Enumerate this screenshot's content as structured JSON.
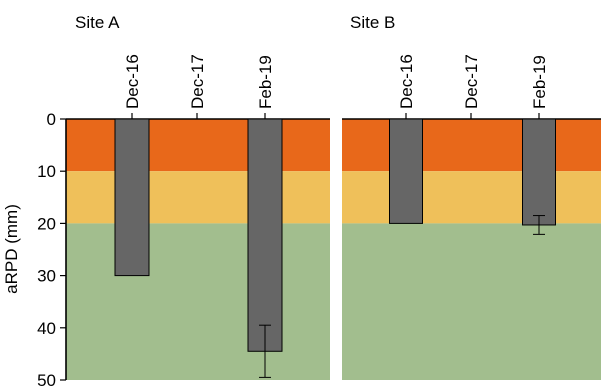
{
  "chart_data": {
    "type": "bar",
    "ylabel": "aRPD (mm)",
    "y_ticks": [
      0,
      10,
      20,
      30,
      40,
      50
    ],
    "ylim": [
      0,
      50
    ],
    "y_inverted": true,
    "categories": [
      "Dec-16",
      "Dec-17",
      "Feb-19"
    ],
    "background_bands": [
      {
        "from": 0,
        "to": 10,
        "color": "#E8681A"
      },
      {
        "from": 10,
        "to": 20,
        "color": "#EFC05A"
      },
      {
        "from": 20,
        "to": 50,
        "color": "#A2BE8E"
      }
    ],
    "bar_color": "#666666",
    "panels": [
      {
        "title": "Site A",
        "values": [
          30,
          null,
          44.5
        ],
        "error": [
          null,
          null,
          5
        ]
      },
      {
        "title": "Site B",
        "values": [
          20,
          null,
          20.3
        ],
        "error": [
          null,
          null,
          1.8
        ]
      }
    ]
  }
}
